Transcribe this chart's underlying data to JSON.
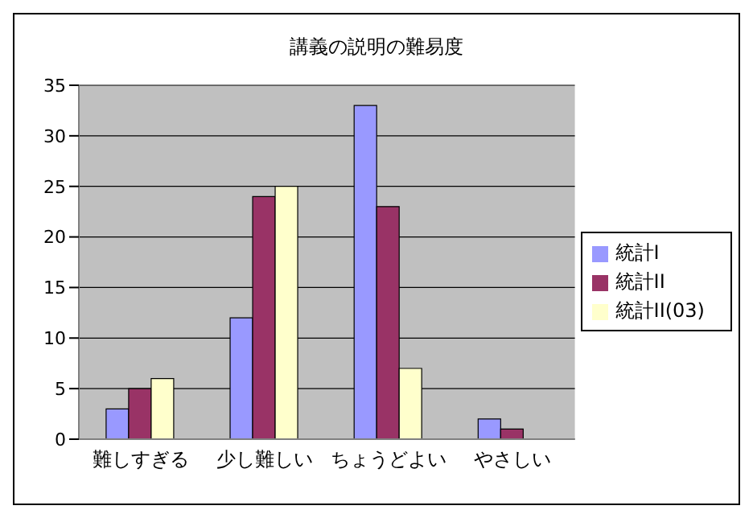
{
  "chart_data": {
    "type": "bar",
    "title": "講義の説明の難易度",
    "categories": [
      "難しすぎる",
      "少し難しい",
      "ちょうどよい",
      "やさしい"
    ],
    "series": [
      {
        "name": "統計I",
        "color": "#9999ff",
        "values": [
          3,
          12,
          33,
          2
        ]
      },
      {
        "name": "統計II",
        "color": "#993366",
        "values": [
          5,
          24,
          23,
          1
        ]
      },
      {
        "name": "統計II(03)",
        "color": "#ffffcc",
        "values": [
          6,
          25,
          7,
          0
        ]
      }
    ],
    "ylim": [
      0,
      35
    ],
    "yticks": [
      0,
      5,
      10,
      15,
      20,
      25,
      30,
      35
    ],
    "grid": "y",
    "legend": "right"
  }
}
